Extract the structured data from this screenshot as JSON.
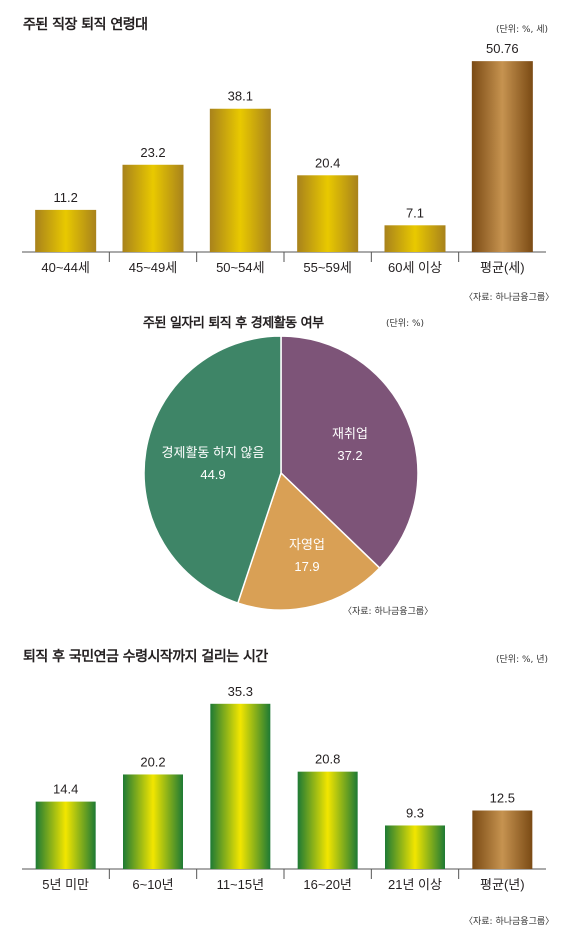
{
  "chart_data": [
    {
      "type": "bar",
      "title": "주된 직장 퇴직 연령대",
      "unit": "(단위: %, 세)",
      "source": "〈자료: 하나금융그룹〉",
      "categories": [
        "40~44세",
        "45~49세",
        "50~54세",
        "55~59세",
        "60세 이상",
        "평균(세)"
      ],
      "values": [
        11.2,
        23.2,
        38.1,
        20.4,
        7.1,
        50.76
      ],
      "value_labels": [
        "11.2",
        "23.2",
        "38.1",
        "20.4",
        "7.1",
        "50.76"
      ]
    },
    {
      "type": "pie",
      "title": "주된 일자리 퇴직 후 경제활동 여부",
      "unit": "(단위: %)",
      "source": "〈자료: 하나금융그룹〉",
      "slices": [
        {
          "label": "재취업",
          "value": 37.2,
          "value_label": "37.2",
          "color": "#7d5478"
        },
        {
          "label": "자영업",
          "value": 17.9,
          "value_label": "17.9",
          "color": "#d9a055"
        },
        {
          "label": "경제활동 하지 않음",
          "value": 44.9,
          "value_label": "44.9",
          "color": "#3e8567"
        }
      ]
    },
    {
      "type": "bar",
      "title": "퇴직 후 국민연금 수령시작까지 걸리는 시간",
      "unit": "(단위: %, 년)",
      "source": "〈자료: 하나금융그룹〉",
      "categories": [
        "5년 미만",
        "6~10년",
        "11~15년",
        "16~20년",
        "21년 이상",
        "평균(년)"
      ],
      "values": [
        14.4,
        20.2,
        35.3,
        20.8,
        9.3,
        12.5
      ],
      "value_labels": [
        "14.4",
        "20.2",
        "35.3",
        "20.8",
        "9.3",
        "12.5"
      ]
    }
  ],
  "colors": {
    "gold": "#e9c900",
    "gold_edge": "#a8821c",
    "brown": "#6b3d12",
    "green": "#1e7a34",
    "yellow": "#f2e600",
    "bronze": "#7a4a14"
  }
}
